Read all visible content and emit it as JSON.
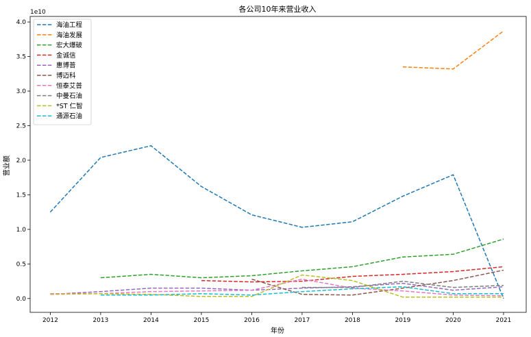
{
  "chart_data": {
    "type": "line",
    "title": "各公司10年来营业收入",
    "xlabel": "年份",
    "ylabel": "营业额",
    "y_offset_label": "1e10",
    "y_scale_factor": 10000000000,
    "x": [
      2012,
      2013,
      2014,
      2015,
      2016,
      2017,
      2018,
      2019,
      2020,
      2021
    ],
    "xlim": [
      2011.6,
      2021.45
    ],
    "ylim": [
      -0.2,
      4.08
    ],
    "yticks": [
      0.0,
      0.5,
      1.0,
      1.5,
      2.0,
      2.5,
      3.0,
      3.5,
      4.0
    ],
    "ytick_labels": [
      "0.0",
      "0.5",
      "1.0",
      "1.5",
      "2.0",
      "2.5",
      "3.0",
      "3.5",
      "4.0"
    ],
    "grid": false,
    "legend_position": "upper left",
    "line_style": "dashed",
    "series": [
      {
        "name": "海油工程",
        "color": "#1f77b4",
        "values": [
          1.25,
          2.04,
          2.21,
          1.62,
          1.21,
          1.03,
          1.11,
          1.48,
          1.79,
          0.0
        ]
      },
      {
        "name": "海油发展",
        "color": "#ff7f0e",
        "values": [
          null,
          null,
          null,
          null,
          null,
          null,
          null,
          3.35,
          3.32,
          3.87
        ]
      },
      {
        "name": "宏大爆破",
        "color": "#2ca02c",
        "values": [
          null,
          0.3,
          0.35,
          0.3,
          0.33,
          0.4,
          0.46,
          0.6,
          0.64,
          0.86
        ]
      },
      {
        "name": "金诚信",
        "color": "#d62728",
        "values": [
          null,
          null,
          null,
          0.26,
          0.24,
          0.25,
          0.32,
          0.35,
          0.39,
          0.46
        ]
      },
      {
        "name": "惠博普",
        "color": "#9467bd",
        "values": [
          0.06,
          0.1,
          0.15,
          0.15,
          0.12,
          0.15,
          0.17,
          0.22,
          0.12,
          0.17
        ]
      },
      {
        "name": "博迈科",
        "color": "#8c564b",
        "values": [
          null,
          null,
          null,
          null,
          0.28,
          0.06,
          0.05,
          0.15,
          0.26,
          0.41
        ]
      },
      {
        "name": "恒泰艾普",
        "color": "#e377c2",
        "values": [
          0.07,
          0.07,
          0.1,
          0.11,
          0.12,
          0.28,
          0.15,
          0.11,
          0.05,
          0.04
        ]
      },
      {
        "name": "中曼石油",
        "color": "#7f7f7f",
        "values": [
          null,
          null,
          null,
          null,
          null,
          0.16,
          0.16,
          0.25,
          0.16,
          0.19
        ]
      },
      {
        "name": "*ST 仁智",
        "color": "#bcbd22",
        "values": [
          0.06,
          0.07,
          0.06,
          0.03,
          0.03,
          0.34,
          0.26,
          0.02,
          0.02,
          0.02
        ]
      },
      {
        "name": "通源石油",
        "color": "#17becf",
        "values": [
          null,
          0.05,
          0.05,
          0.07,
          0.05,
          0.1,
          0.14,
          0.17,
          0.07,
          0.07
        ]
      }
    ]
  }
}
